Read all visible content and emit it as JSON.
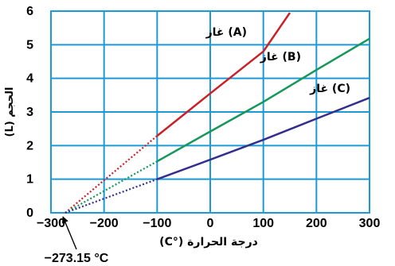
{
  "chart_data": {
    "type": "line",
    "xlabel": "درجة الحرارة (°C)",
    "ylabel": "الحجم (L)",
    "xlim": [
      -300,
      300
    ],
    "ylim": [
      0,
      6
    ],
    "x_ticks": [
      "−300",
      "−200",
      "−100",
      "0",
      "100",
      "200",
      "300"
    ],
    "x_tick_values": [
      -300,
      -200,
      -100,
      0,
      100,
      200,
      300
    ],
    "y_ticks": [
      "0",
      "1",
      "2",
      "3",
      "4",
      "5",
      "6"
    ],
    "y_tick_values": [
      0,
      1,
      2,
      3,
      4,
      5,
      6
    ],
    "grid": true,
    "annotation": {
      "text": "−273.15 °C",
      "x": -273.15,
      "y": 0
    },
    "series": [
      {
        "name": "غاز (A)",
        "color": "#cc1f26",
        "dashed_range": [
          -273.15,
          -100
        ],
        "solid_range": [
          -100,
          150
        ],
        "points": [
          [
            -273.15,
            0
          ],
          [
            -100,
            2.29
          ],
          [
            0,
            3.55
          ],
          [
            100,
            4.8
          ],
          [
            150,
            5.95
          ]
        ]
      },
      {
        "name": "غاز (B)",
        "color": "#14985a",
        "dashed_range": [
          -273.15,
          -100
        ],
        "solid_range": [
          -100,
          300
        ],
        "points": [
          [
            -273.15,
            0
          ],
          [
            -100,
            1.53
          ],
          [
            0,
            2.42
          ],
          [
            100,
            3.3
          ],
          [
            200,
            4.25
          ],
          [
            300,
            5.18
          ]
        ]
      },
      {
        "name": "غاز (C)",
        "color": "#332f8e",
        "dashed_range": [
          -273.15,
          -100
        ],
        "solid_range": [
          -100,
          300
        ],
        "points": [
          [
            -273.15,
            0
          ],
          [
            -100,
            1.0
          ],
          [
            0,
            1.58
          ],
          [
            100,
            2.17
          ],
          [
            200,
            2.8
          ],
          [
            300,
            3.42
          ]
        ]
      }
    ]
  }
}
